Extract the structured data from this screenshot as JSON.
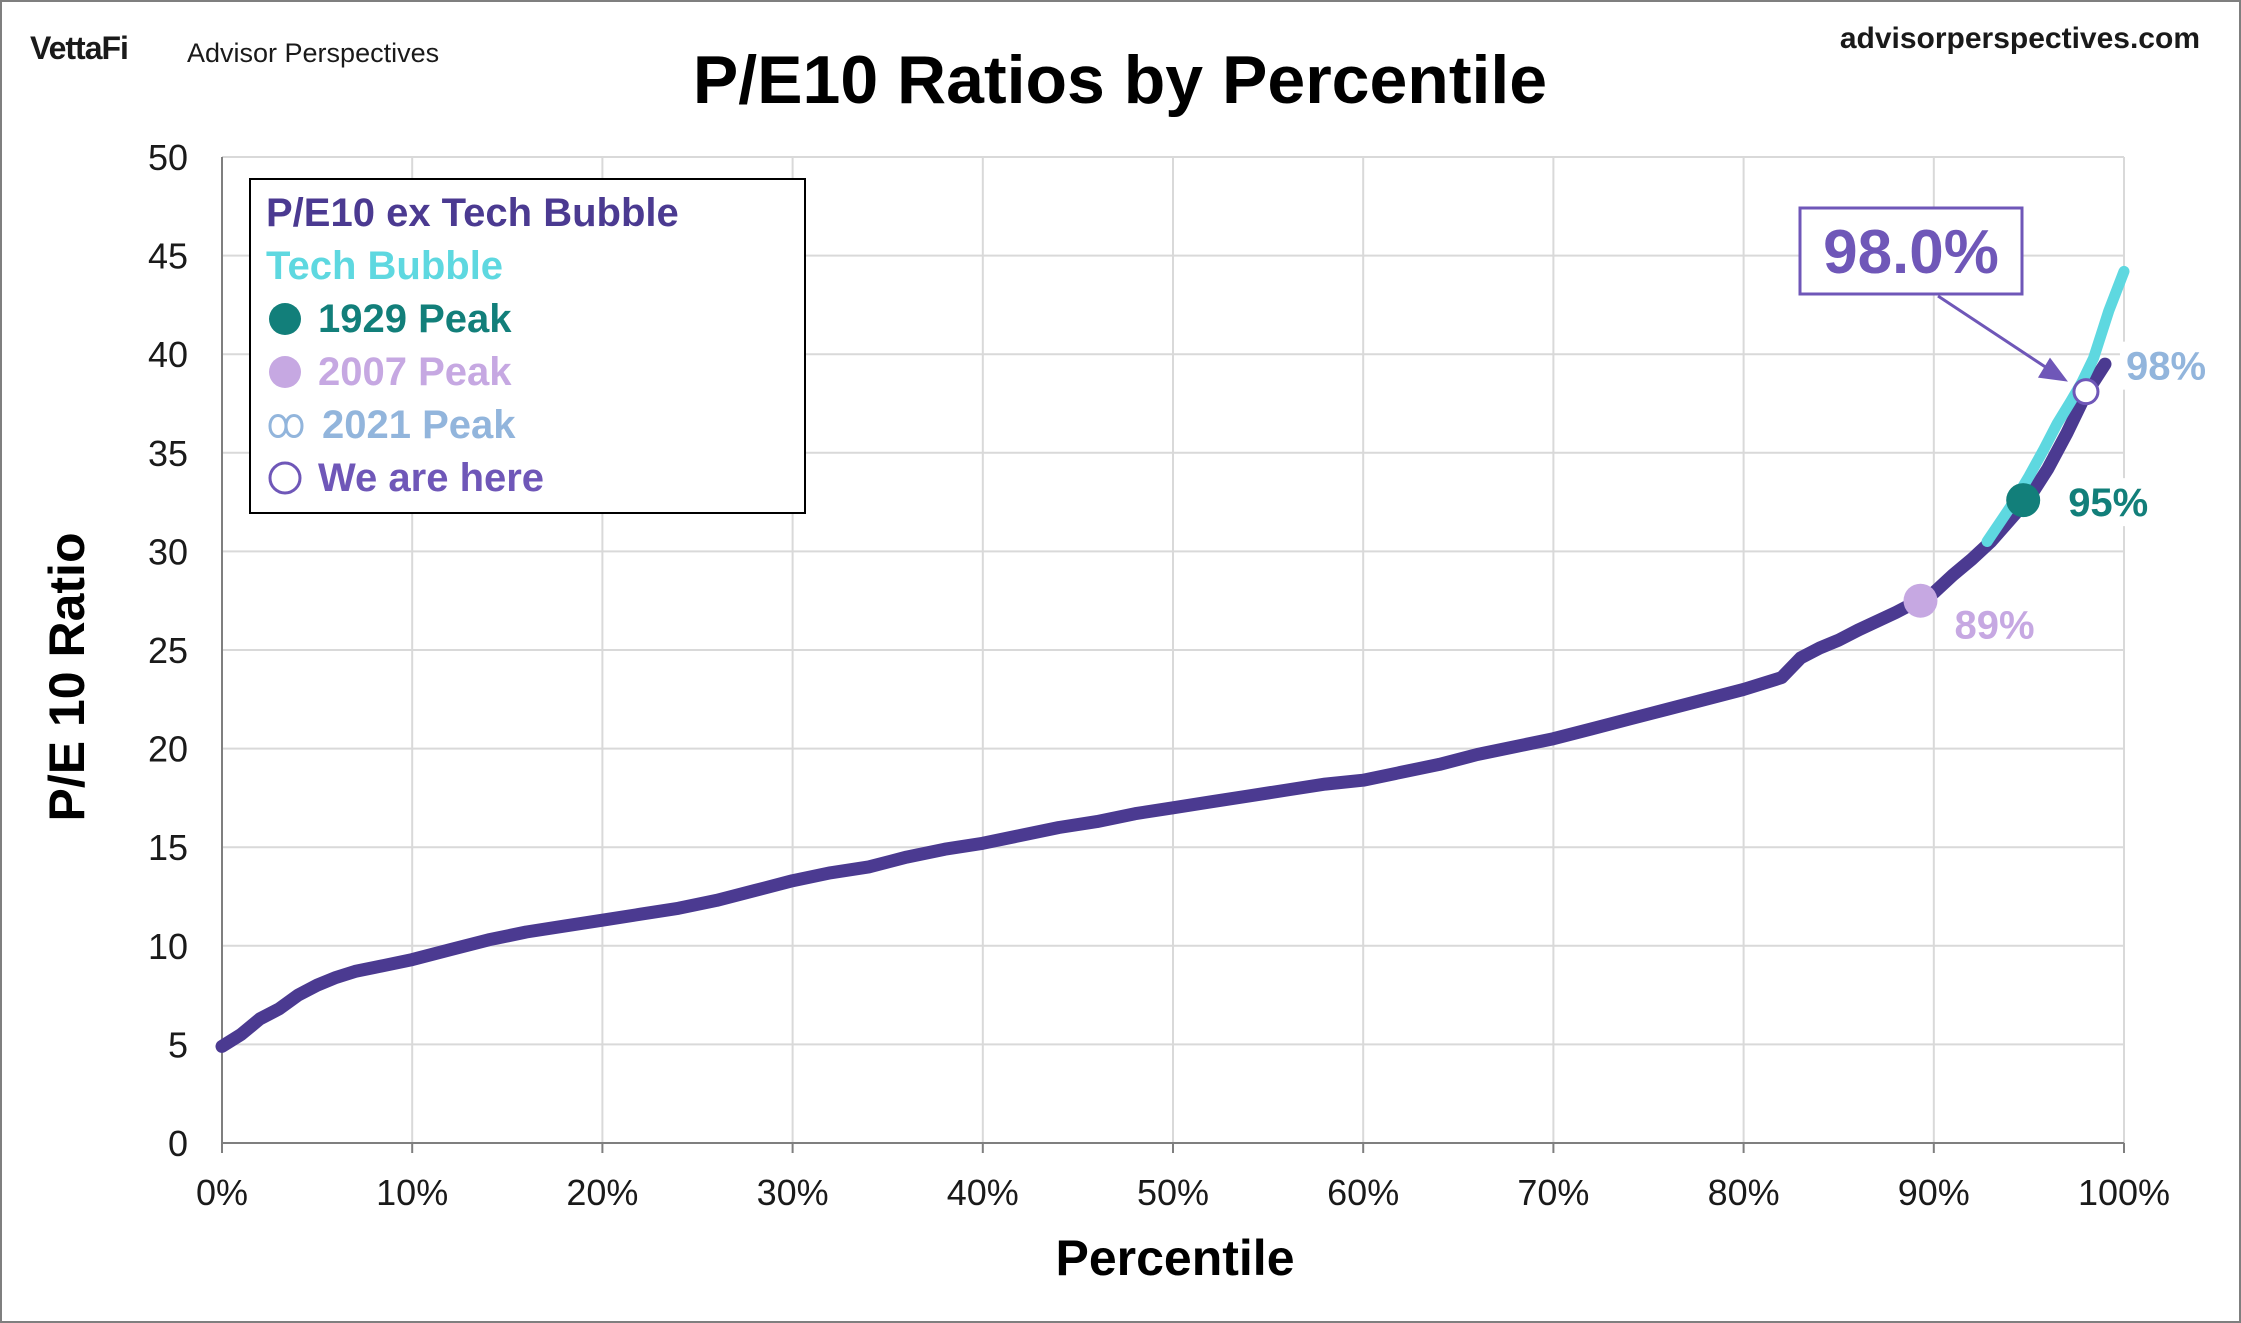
{
  "brand": {
    "logo": "VettaFi",
    "name": "Advisor Perspectives",
    "url": "advisorperspectives.com"
  },
  "chart_data": {
    "type": "line",
    "title": "P/E10 Ratios by Percentile",
    "xlabel": "Percentile",
    "ylabel": "P/E 10 Ratio",
    "xlim": [
      0,
      100
    ],
    "ylim": [
      0,
      50
    ],
    "x_ticks": [
      "0%",
      "10%",
      "20%",
      "30%",
      "40%",
      "50%",
      "60%",
      "70%",
      "80%",
      "90%",
      "100%"
    ],
    "y_ticks": [
      "0",
      "5",
      "10",
      "15",
      "20",
      "25",
      "30",
      "35",
      "40",
      "45",
      "50"
    ],
    "grid": true,
    "legend_position": "top-left",
    "series": [
      {
        "name": "P/E10 ex Tech Bubble",
        "color": "#4b3a91",
        "x": [
          0,
          1,
          2,
          3,
          4,
          5,
          6,
          7,
          8,
          10,
          12,
          14,
          16,
          18,
          20,
          22,
          24,
          26,
          28,
          30,
          32,
          34,
          36,
          38,
          40,
          42,
          44,
          46,
          48,
          50,
          52,
          54,
          56,
          58,
          60,
          62,
          64,
          66,
          68,
          70,
          72,
          74,
          76,
          78,
          80,
          82,
          83,
          84,
          85,
          86,
          88,
          90,
          91,
          92,
          93,
          94,
          95,
          96,
          97,
          98,
          99
        ],
        "y": [
          4.9,
          5.5,
          6.3,
          6.8,
          7.5,
          8.0,
          8.4,
          8.7,
          8.9,
          9.3,
          9.8,
          10.3,
          10.7,
          11.0,
          11.3,
          11.6,
          11.9,
          12.3,
          12.8,
          13.3,
          13.7,
          14.0,
          14.5,
          14.9,
          15.2,
          15.6,
          16.0,
          16.3,
          16.7,
          17.0,
          17.3,
          17.6,
          17.9,
          18.2,
          18.4,
          18.8,
          19.2,
          19.7,
          20.1,
          20.5,
          21.0,
          21.5,
          22.0,
          22.5,
          23.0,
          23.6,
          24.6,
          25.1,
          25.5,
          26.0,
          26.9,
          27.9,
          28.8,
          29.6,
          30.5,
          31.6,
          32.7,
          34.2,
          36.0,
          38.0,
          39.5
        ]
      },
      {
        "name": "Tech Bubble",
        "color": "#5ed8e0",
        "x": [
          92.8,
          93.5,
          94.2,
          95.0,
          95.8,
          96.5,
          97.2,
          97.8,
          98.4,
          98.8,
          99.2,
          99.6,
          100
        ],
        "y": [
          30.5,
          31.5,
          32.5,
          33.8,
          35.2,
          36.5,
          37.6,
          38.6,
          39.8,
          41.0,
          42.2,
          43.2,
          44.2
        ]
      }
    ],
    "markers": [
      {
        "name": "1929 Peak",
        "x": 94.7,
        "y": 32.6,
        "color": "#127f7a",
        "label": "95%"
      },
      {
        "name": "2007 Peak",
        "x": 89.3,
        "y": 27.5,
        "color": "#c6a8e2",
        "label": "89%"
      },
      {
        "name": "2021 Peak",
        "x": 98.0,
        "y": 38.1,
        "color": "#92b5dc",
        "label": "98%"
      },
      {
        "name": "We are here",
        "x": 98.0,
        "y": 38.1,
        "color": "#6f57b8",
        "label": ""
      }
    ],
    "callout": {
      "text": "98.0%",
      "color": "#6f57b8"
    },
    "legend": [
      {
        "label": "P/E10 ex Tech Bubble",
        "color": "#4b3a91",
        "symbol": "none"
      },
      {
        "label": "Tech Bubble",
        "color": "#5ed8e0",
        "symbol": "none"
      },
      {
        "label": "1929 Peak",
        "color": "#127f7a",
        "symbol": "filled-circle"
      },
      {
        "label": "2007 Peak",
        "color": "#c6a8e2",
        "symbol": "filled-circle"
      },
      {
        "label": "2021 Peak",
        "color": "#92b5dc",
        "symbol": "infinity-icon"
      },
      {
        "label": "We are here",
        "color": "#6f57b8",
        "symbol": "open-circle"
      }
    ]
  }
}
